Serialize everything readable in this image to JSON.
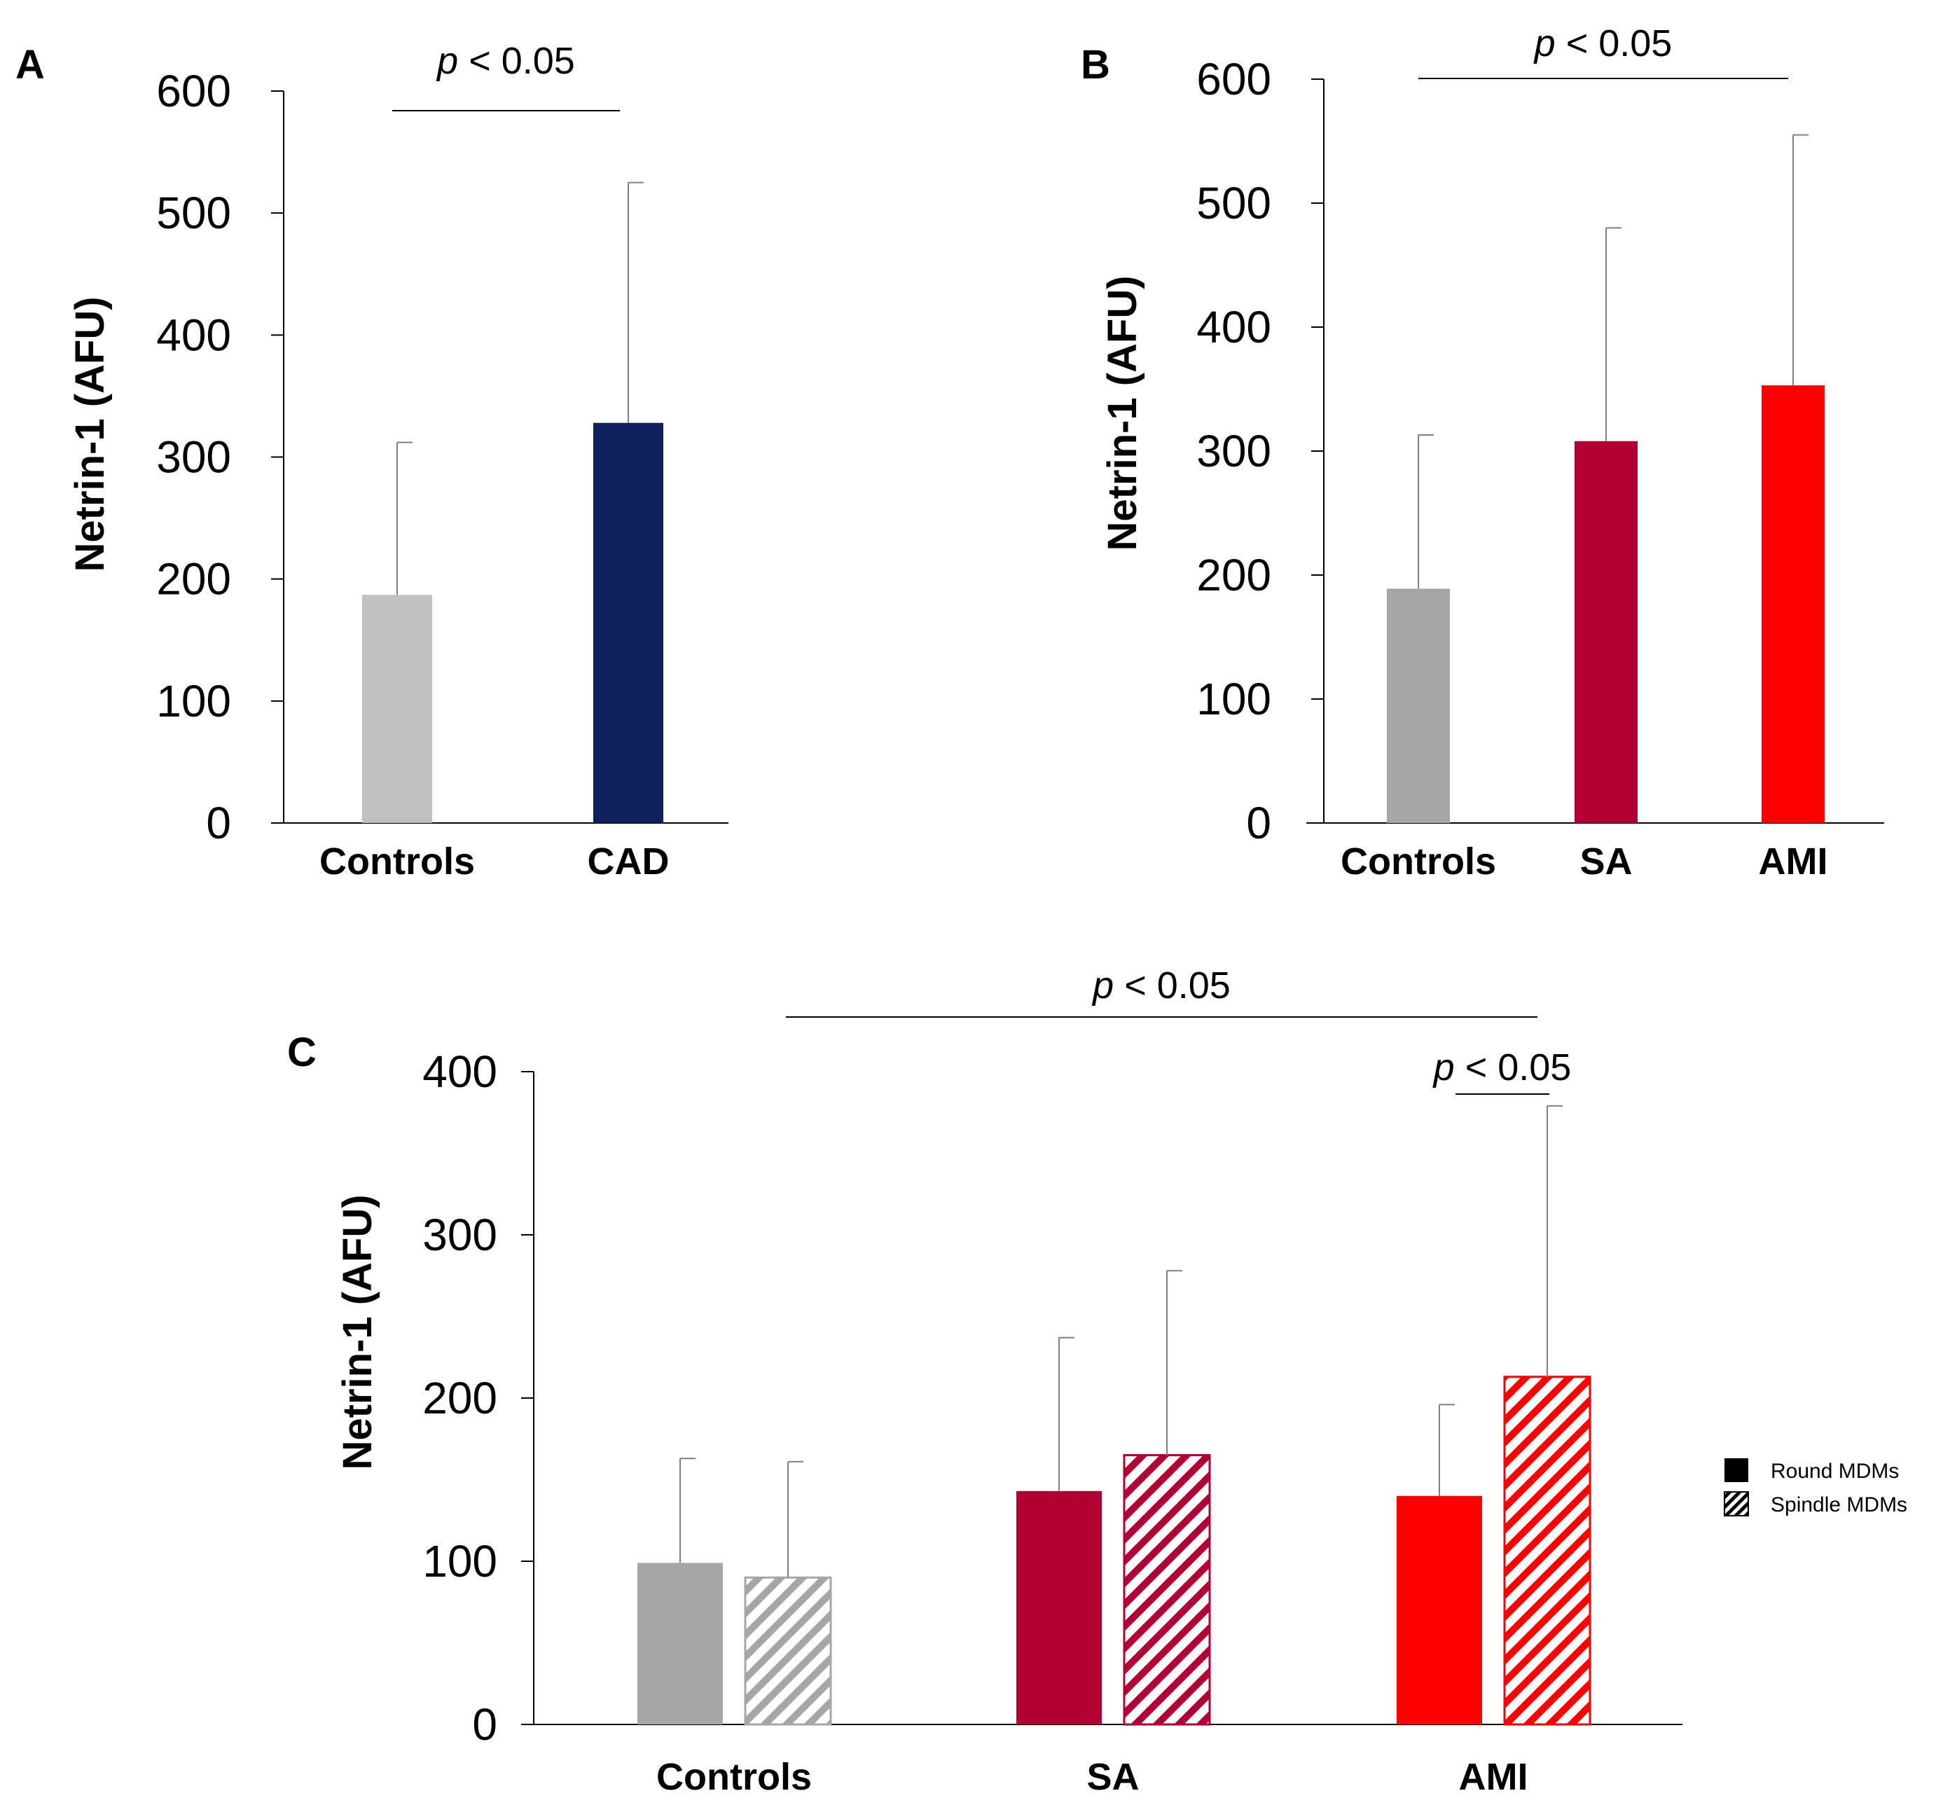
{
  "chart_data": [
    {
      "panel": "A",
      "type": "bar",
      "ylabel": "Netrin-1 (AFU)",
      "ylim": [
        0,
        600
      ],
      "yticks": [
        0,
        100,
        200,
        300,
        400,
        500,
        600
      ],
      "categories": [
        "Controls",
        "CAD"
      ],
      "series": [
        {
          "values": [
            187,
            328
          ],
          "errors": [
            125,
            197
          ],
          "colors": [
            "#c0c0c0",
            "#0d1f5c"
          ]
        }
      ],
      "significance": [
        {
          "from": 0,
          "to": 1,
          "label_italic": "p",
          "label_rest": " < 0.05"
        }
      ]
    },
    {
      "panel": "B",
      "type": "bar",
      "ylabel": "Netrin-1 (AFU)",
      "ylim": [
        0,
        600
      ],
      "yticks": [
        0,
        100,
        200,
        300,
        400,
        500,
        600
      ],
      "categories": [
        "Controls",
        "SA",
        "AMI"
      ],
      "series": [
        {
          "values": [
            189,
            308,
            353
          ],
          "errors": [
            124,
            172,
            202
          ],
          "colors": [
            "#a6a6a6",
            "#b30033",
            "#ff0000"
          ]
        }
      ],
      "significance": [
        {
          "from": 0,
          "to": 2,
          "label_italic": "p",
          "label_rest": " < 0.05"
        }
      ]
    },
    {
      "panel": "C",
      "type": "bar",
      "ylabel": "Netrin-1 (AFU)",
      "ylim": [
        0,
        400
      ],
      "yticks": [
        0,
        100,
        200,
        300,
        400
      ],
      "categories": [
        "Controls",
        "SA",
        "AMI"
      ],
      "group_colors": [
        "#a6a6a6",
        "#b30033",
        "#ff0000"
      ],
      "series": [
        {
          "name": "Round MDMs",
          "pattern": "solid",
          "values": [
            99,
            143,
            140
          ],
          "errors": [
            64,
            94,
            56
          ]
        },
        {
          "name": "Spindle MDMs",
          "pattern": "hatched",
          "values": [
            90,
            165,
            213
          ],
          "errors": [
            71,
            113,
            166
          ]
        }
      ],
      "significance": [
        {
          "from_cat": 0,
          "from_series": 0,
          "to_cat": 2,
          "to_series": 1,
          "label_italic": "p",
          "label_rest": " < 0.05"
        },
        {
          "from_cat": 2,
          "from_series": 0,
          "to_cat": 2,
          "to_series": 1,
          "label_italic": "p",
          "label_rest": " < 0.05"
        }
      ],
      "legend": {
        "position": "right",
        "items": [
          "Round MDMs",
          "Spindle MDMs"
        ]
      }
    }
  ]
}
